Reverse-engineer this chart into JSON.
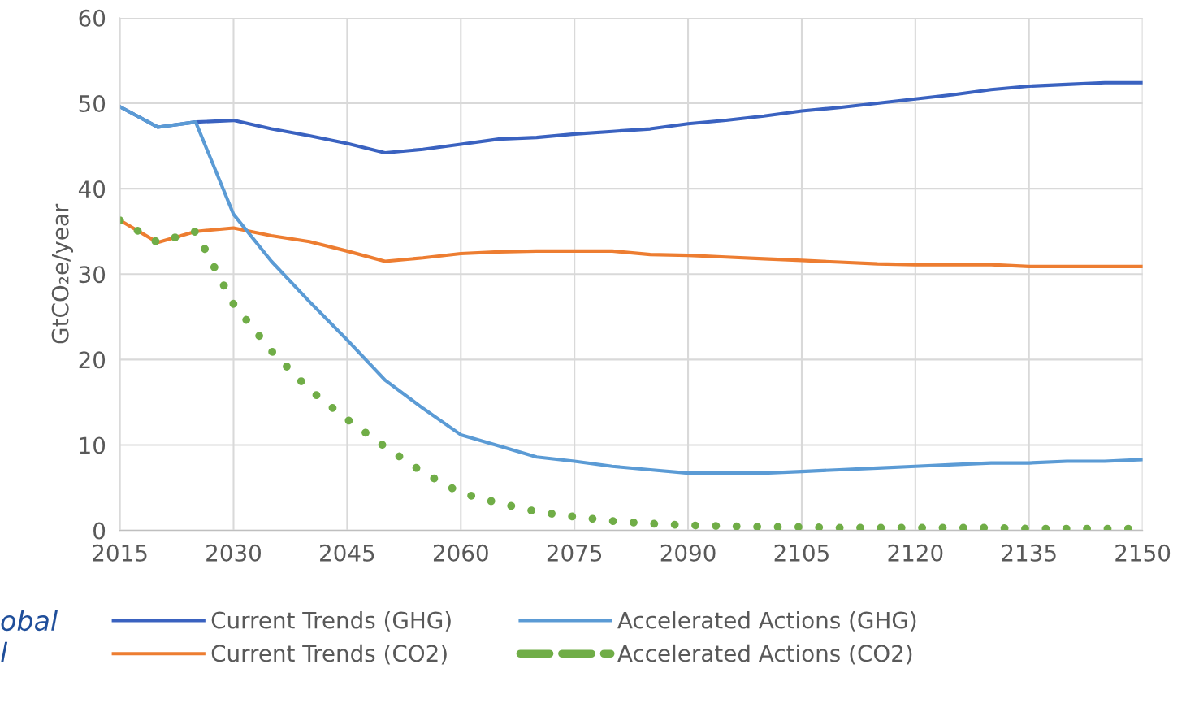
{
  "chart_data": {
    "type": "line",
    "ylabel": "GtCO₂e/year",
    "x": [
      2015,
      2020,
      2025,
      2030,
      2035,
      2040,
      2045,
      2050,
      2055,
      2060,
      2065,
      2070,
      2075,
      2080,
      2085,
      2090,
      2095,
      2100,
      2105,
      2110,
      2115,
      2120,
      2125,
      2130,
      2135,
      2140,
      2145,
      2150
    ],
    "series": [
      {
        "name": "Current Trends (GHG)",
        "color": "#3a62c0",
        "line_style": "solid",
        "values": [
          49.6,
          47.2,
          47.8,
          48.0,
          47.0,
          46.2,
          45.3,
          44.2,
          44.6,
          45.2,
          45.8,
          46.0,
          46.4,
          46.7,
          47.0,
          47.6,
          48.0,
          48.5,
          49.1,
          49.5,
          50.0,
          50.5,
          51.0,
          51.6,
          52.0,
          52.2,
          52.4,
          52.4
        ]
      },
      {
        "name": "Current Trends (CO2)",
        "color": "#ed7d31",
        "line_style": "solid",
        "values": [
          36.3,
          33.7,
          35.0,
          35.4,
          34.5,
          33.8,
          32.7,
          31.5,
          31.9,
          32.4,
          32.6,
          32.7,
          32.7,
          32.7,
          32.3,
          32.2,
          32.0,
          31.8,
          31.6,
          31.4,
          31.2,
          31.1,
          31.1,
          31.1,
          30.9,
          30.9,
          30.9,
          30.9
        ]
      },
      {
        "name": "Accelerated Actions (GHG)",
        "color": "#5b9bd5",
        "line_style": "solid",
        "values": [
          49.6,
          47.2,
          47.8,
          37.0,
          31.5,
          26.8,
          22.3,
          17.6,
          14.3,
          11.2,
          9.9,
          8.6,
          8.1,
          7.5,
          7.1,
          6.7,
          6.7,
          6.7,
          6.9,
          7.1,
          7.3,
          7.5,
          7.7,
          7.9,
          7.9,
          8.1,
          8.1,
          8.3
        ]
      },
      {
        "name": "Accelerated Actions (CO2)",
        "color": "#70ad47",
        "line_style": "dotted",
        "values": [
          36.3,
          33.7,
          35.0,
          26.5,
          21.0,
          16.5,
          13.0,
          9.8,
          6.8,
          4.4,
          3.2,
          2.2,
          1.6,
          1.1,
          0.8,
          0.6,
          0.5,
          0.4,
          0.4,
          0.3,
          0.3,
          0.3,
          0.3,
          0.3,
          0.2,
          0.2,
          0.2,
          0.2
        ]
      }
    ],
    "xlim": [
      2015,
      2150
    ],
    "xticks": [
      2015,
      2030,
      2045,
      2060,
      2075,
      2090,
      2105,
      2120,
      2135,
      2150
    ],
    "ylim": [
      0,
      60
    ],
    "yticks": [
      0,
      10,
      20,
      30,
      40,
      50,
      60
    ],
    "grid": true,
    "legend": "bottom",
    "marker": "none",
    "annotations": [
      "obal",
      "l"
    ]
  }
}
